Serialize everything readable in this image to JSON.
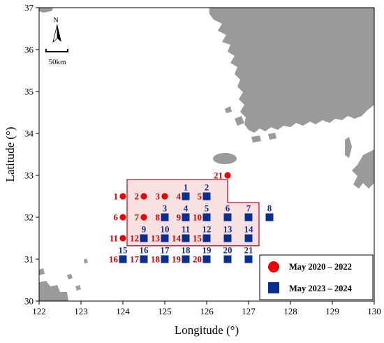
{
  "axes": {
    "xlabel": "Longitude (°)",
    "ylabel": "Latitude (°)",
    "xlim": [
      122,
      130
    ],
    "ylim": [
      30,
      37
    ],
    "xticks": [
      "122",
      "123",
      "124",
      "125",
      "126",
      "127",
      "128",
      "129",
      "130"
    ],
    "yticks": [
      "30",
      "31",
      "32",
      "33",
      "34",
      "35",
      "36",
      "37"
    ]
  },
  "north_arrow": {
    "label": "N"
  },
  "scale_bar": {
    "label": "50km"
  },
  "colors": {
    "land": "#9a9a9a",
    "red_station": "#e60000",
    "blue_station": "#0b2f8f",
    "blue_label": "#1a2f8a",
    "survey_area_fill": "#f7dede",
    "survey_area_edge": "#c8102e"
  },
  "survey_area_polygon": [
    [
      124.1,
      32.9
    ],
    [
      126.5,
      32.9
    ],
    [
      126.5,
      32.35
    ],
    [
      127.25,
      32.35
    ],
    [
      127.25,
      31.32
    ],
    [
      124.1,
      31.32
    ]
  ],
  "legend": {
    "position": "bottom-right",
    "items": [
      {
        "symbol": "circle",
        "label": "May 2020 – 2022"
      },
      {
        "symbol": "square",
        "label": "May 2023 – 2024"
      }
    ]
  },
  "stations_2020_2022": [
    {
      "id": "1",
      "lon": 124.0,
      "lat": 32.5
    },
    {
      "id": "2",
      "lon": 124.5,
      "lat": 32.5
    },
    {
      "id": "3",
      "lon": 125.0,
      "lat": 32.5
    },
    {
      "id": "4",
      "lon": 125.5,
      "lat": 32.5
    },
    {
      "id": "5",
      "lon": 126.0,
      "lat": 32.5
    },
    {
      "id": "6",
      "lon": 124.0,
      "lat": 32.0
    },
    {
      "id": "7",
      "lon": 124.5,
      "lat": 32.0
    },
    {
      "id": "8",
      "lon": 125.0,
      "lat": 32.0
    },
    {
      "id": "9",
      "lon": 125.5,
      "lat": 32.0
    },
    {
      "id": "10",
      "lon": 126.0,
      "lat": 32.0
    },
    {
      "id": "11",
      "lon": 124.0,
      "lat": 31.5
    },
    {
      "id": "12",
      "lon": 124.5,
      "lat": 31.5
    },
    {
      "id": "13",
      "lon": 125.0,
      "lat": 31.5
    },
    {
      "id": "14",
      "lon": 125.5,
      "lat": 31.5
    },
    {
      "id": "15",
      "lon": 126.0,
      "lat": 31.5
    },
    {
      "id": "16",
      "lon": 124.0,
      "lat": 31.0
    },
    {
      "id": "17",
      "lon": 124.5,
      "lat": 31.0
    },
    {
      "id": "18",
      "lon": 125.0,
      "lat": 31.0
    },
    {
      "id": "19",
      "lon": 125.5,
      "lat": 31.0
    },
    {
      "id": "20",
      "lon": 126.0,
      "lat": 31.0
    },
    {
      "id": "21",
      "lon": 126.5,
      "lat": 33.0
    }
  ],
  "stations_2023_2024": [
    {
      "id": "1",
      "lon": 125.5,
      "lat": 32.5
    },
    {
      "id": "2",
      "lon": 126.0,
      "lat": 32.5
    },
    {
      "id": "3",
      "lon": 125.0,
      "lat": 32.0
    },
    {
      "id": "4",
      "lon": 125.5,
      "lat": 32.0
    },
    {
      "id": "5",
      "lon": 126.0,
      "lat": 32.0
    },
    {
      "id": "6",
      "lon": 126.5,
      "lat": 32.0
    },
    {
      "id": "7",
      "lon": 127.0,
      "lat": 32.0
    },
    {
      "id": "8",
      "lon": 127.5,
      "lat": 32.0
    },
    {
      "id": "9",
      "lon": 124.5,
      "lat": 31.5
    },
    {
      "id": "10",
      "lon": 125.0,
      "lat": 31.5
    },
    {
      "id": "11",
      "lon": 125.5,
      "lat": 31.5
    },
    {
      "id": "12",
      "lon": 126.0,
      "lat": 31.5
    },
    {
      "id": "13",
      "lon": 126.5,
      "lat": 31.5
    },
    {
      "id": "14",
      "lon": 127.0,
      "lat": 31.5
    },
    {
      "id": "15",
      "lon": 124.0,
      "lat": 31.0
    },
    {
      "id": "16",
      "lon": 124.5,
      "lat": 31.0
    },
    {
      "id": "17",
      "lon": 125.0,
      "lat": 31.0
    },
    {
      "id": "18",
      "lon": 125.5,
      "lat": 31.0
    },
    {
      "id": "19",
      "lon": 126.0,
      "lat": 31.0
    },
    {
      "id": "20",
      "lon": 126.5,
      "lat": 31.0
    },
    {
      "id": "21",
      "lon": 127.0,
      "lat": 31.0
    }
  ]
}
